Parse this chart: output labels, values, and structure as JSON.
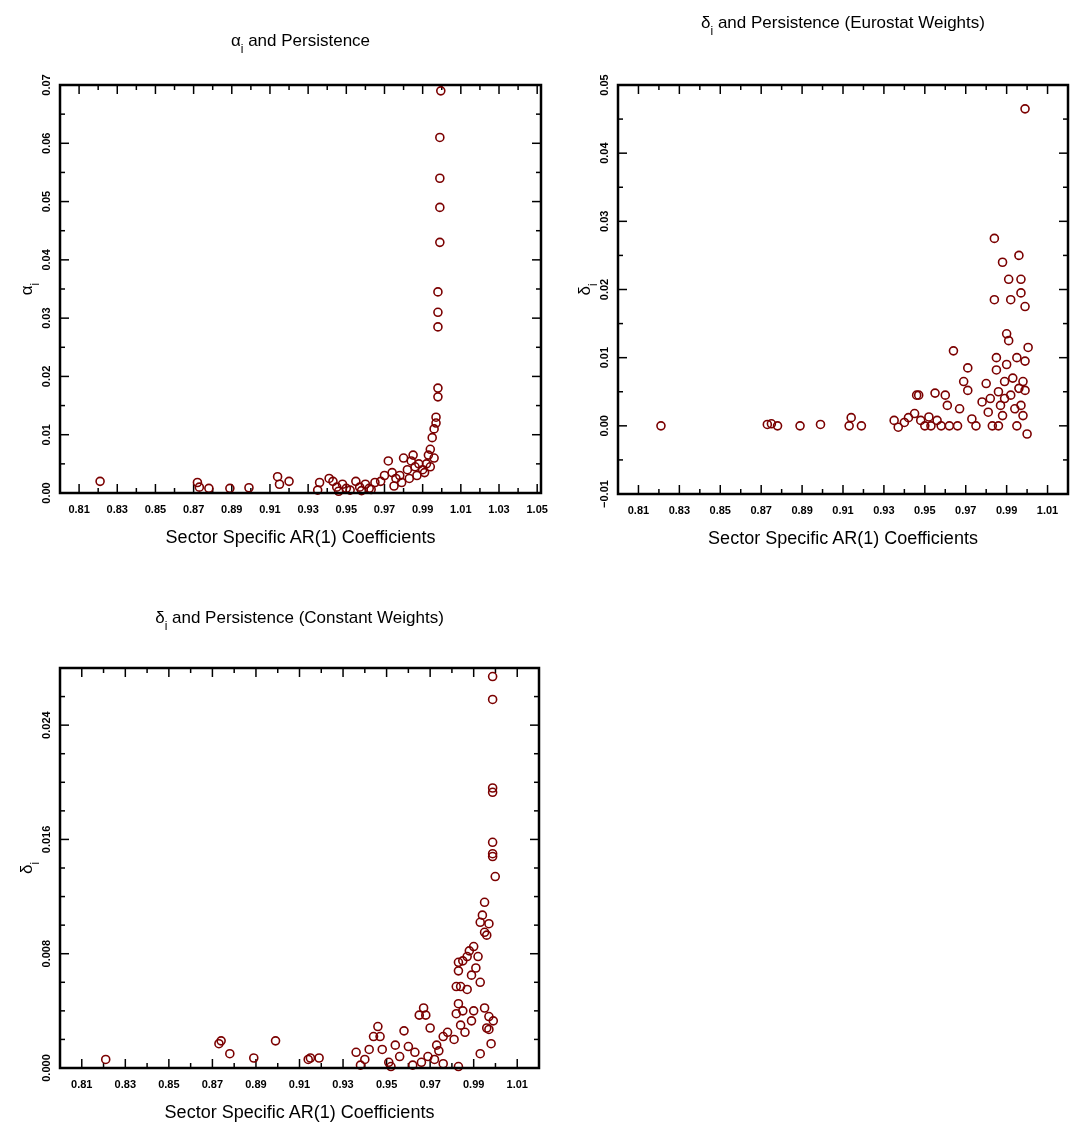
{
  "chart_data": [
    {
      "type": "scatter",
      "title": "α$_{i}$ and Persistence",
      "xlabel": "Sector Specific AR(1) Coefficients",
      "ylabel": "α$_{i}$",
      "color": "#7b0000",
      "marker": "circle",
      "grid": false,
      "xlim": [
        0.8,
        1.052
      ],
      "ylim": [
        0,
        0.07
      ],
      "xticks": [
        {
          "value": 0.81,
          "label": "0.81"
        },
        {
          "value": 0.82,
          "label": null
        },
        {
          "value": 0.83,
          "label": "0.83"
        },
        {
          "value": 0.84,
          "label": null
        },
        {
          "value": 0.85,
          "label": "0.85"
        },
        {
          "value": 0.86,
          "label": null
        },
        {
          "value": 0.87,
          "label": "0.87"
        },
        {
          "value": 0.88,
          "label": null
        },
        {
          "value": 0.89,
          "label": "0.89"
        },
        {
          "value": 0.9,
          "label": null
        },
        {
          "value": 0.91,
          "label": "0.91"
        },
        {
          "value": 0.92,
          "label": null
        },
        {
          "value": 0.93,
          "label": "0.93"
        },
        {
          "value": 0.94,
          "label": null
        },
        {
          "value": 0.95,
          "label": "0.95"
        },
        {
          "value": 0.96,
          "label": null
        },
        {
          "value": 0.97,
          "label": "0.97"
        },
        {
          "value": 0.98,
          "label": null
        },
        {
          "value": 0.99,
          "label": "0.99"
        },
        {
          "value": 1.0,
          "label": null
        },
        {
          "value": 1.01,
          "label": "1.01"
        },
        {
          "value": 1.02,
          "label": null
        },
        {
          "value": 1.03,
          "label": "1.03"
        },
        {
          "value": 1.04,
          "label": null
        },
        {
          "value": 1.05,
          "label": "1.05"
        }
      ],
      "yticks": [
        {
          "value": 0,
          "label": "0.00"
        },
        {
          "value": 0.005,
          "label": null
        },
        {
          "value": 0.01,
          "label": "0.01"
        },
        {
          "value": 0.015,
          "label": null
        },
        {
          "value": 0.02,
          "label": "0.02"
        },
        {
          "value": 0.025,
          "label": null
        },
        {
          "value": 0.03,
          "label": "0.03"
        },
        {
          "value": 0.035,
          "label": null
        },
        {
          "value": 0.04,
          "label": "0.04"
        },
        {
          "value": 0.045,
          "label": null
        },
        {
          "value": 0.05,
          "label": "0.05"
        },
        {
          "value": 0.055,
          "label": null
        },
        {
          "value": 0.06,
          "label": "0.06"
        },
        {
          "value": 0.065,
          "label": null
        },
        {
          "value": 0.07,
          "label": "0.07"
        }
      ],
      "x": [
        0.821,
        0.872,
        0.873,
        0.878,
        0.889,
        0.899,
        0.914,
        0.915,
        0.92,
        0.936,
        0.935,
        0.941,
        0.943,
        0.945,
        0.948,
        0.95,
        0.952,
        0.955,
        0.957,
        0.96,
        0.962,
        0.965,
        0.968,
        0.97,
        0.972,
        0.974,
        0.976,
        0.978,
        0.98,
        0.982,
        0.984,
        0.985,
        0.986,
        0.988,
        0.99,
        0.992,
        0.993,
        0.994,
        0.995,
        0.996,
        0.997,
        0.997,
        0.998,
        0.998,
        0.998,
        0.998,
        0.998,
        0.999,
        0.999,
        0.999,
        0.999,
        0.9995,
        0.975,
        0.979,
        0.983,
        0.987,
        0.991,
        0.994,
        0.996,
        0.963,
        0.958,
        0.946
      ],
      "values": [
        0.002,
        0.0018,
        0.001,
        0.0008,
        0.0008,
        0.0009,
        0.0028,
        0.0015,
        0.002,
        0.0018,
        0.0005,
        0.0025,
        0.002,
        0.001,
        0.0015,
        0.0008,
        0.0005,
        0.002,
        0.001,
        0.0015,
        0.0008,
        0.0018,
        0.002,
        0.003,
        0.0055,
        0.0035,
        0.0025,
        0.003,
        0.006,
        0.004,
        0.0055,
        0.0065,
        0.0045,
        0.005,
        0.004,
        0.005,
        0.0065,
        0.0075,
        0.0095,
        0.011,
        0.012,
        0.013,
        0.0165,
        0.018,
        0.0285,
        0.031,
        0.0345,
        0.043,
        0.049,
        0.054,
        0.061,
        0.069,
        0.0012,
        0.0018,
        0.0025,
        0.003,
        0.0035,
        0.0045,
        0.006,
        0.0006,
        0.0004,
        0.0003
      ]
    },
    {
      "type": "scatter",
      "title": "δ$_{i}$ and Persistence (Eurostat Weights)",
      "xlabel": "Sector Specific AR(1) Coefficients",
      "ylabel": "δ$_{i}$",
      "color": "#7b0000",
      "marker": "circle",
      "grid": false,
      "xlim": [
        0.8,
        1.02
      ],
      "ylim": [
        -0.01,
        0.05
      ],
      "xticks": [
        {
          "value": 0.81,
          "label": "0.81"
        },
        {
          "value": 0.82,
          "label": null
        },
        {
          "value": 0.83,
          "label": "0.83"
        },
        {
          "value": 0.84,
          "label": null
        },
        {
          "value": 0.85,
          "label": "0.85"
        },
        {
          "value": 0.86,
          "label": null
        },
        {
          "value": 0.87,
          "label": "0.87"
        },
        {
          "value": 0.88,
          "label": null
        },
        {
          "value": 0.89,
          "label": "0.89"
        },
        {
          "value": 0.9,
          "label": null
        },
        {
          "value": 0.91,
          "label": "0.91"
        },
        {
          "value": 0.92,
          "label": null
        },
        {
          "value": 0.93,
          "label": "0.93"
        },
        {
          "value": 0.94,
          "label": null
        },
        {
          "value": 0.95,
          "label": "0.95"
        },
        {
          "value": 0.96,
          "label": null
        },
        {
          "value": 0.97,
          "label": "0.97"
        },
        {
          "value": 0.98,
          "label": null
        },
        {
          "value": 0.99,
          "label": "0.99"
        },
        {
          "value": 1.0,
          "label": null
        },
        {
          "value": 1.01,
          "label": "1.01"
        }
      ],
      "yticks": [
        {
          "value": -0.01,
          "label": "−0.01"
        },
        {
          "value": -0.005,
          "label": null
        },
        {
          "value": 0,
          "label": "0.00"
        },
        {
          "value": 0.005,
          "label": null
        },
        {
          "value": 0.01,
          "label": "0.01"
        },
        {
          "value": 0.015,
          "label": null
        },
        {
          "value": 0.02,
          "label": "0.02"
        },
        {
          "value": 0.025,
          "label": null
        },
        {
          "value": 0.03,
          "label": "0.03"
        },
        {
          "value": 0.035,
          "label": null
        },
        {
          "value": 0.04,
          "label": "0.04"
        },
        {
          "value": 0.045,
          "label": null
        },
        {
          "value": 0.05,
          "label": "0.05"
        }
      ],
      "x": [
        0.821,
        0.873,
        0.875,
        0.878,
        0.889,
        0.899,
        0.913,
        0.914,
        0.919,
        0.935,
        0.937,
        0.94,
        0.942,
        0.945,
        0.946,
        0.947,
        0.948,
        0.95,
        0.952,
        0.953,
        0.955,
        0.956,
        0.958,
        0.96,
        0.961,
        0.962,
        0.964,
        0.966,
        0.967,
        0.969,
        0.971,
        0.971,
        0.973,
        0.975,
        0.978,
        0.98,
        0.981,
        0.983,
        0.984,
        0.984,
        0.985,
        0.985,
        0.986,
        0.987,
        0.988,
        0.988,
        0.989,
        0.99,
        0.99,
        0.991,
        0.991,
        0.992,
        0.992,
        0.993,
        0.994,
        0.995,
        0.995,
        0.996,
        0.996,
        0.997,
        0.997,
        0.998,
        0.998,
        0.999,
        0.999,
        0.999,
        0.999,
        1.0,
        1.0005,
        0.997,
        0.989,
        0.986,
        0.982
      ],
      "values": [
        0.0,
        0.0002,
        0.0003,
        0.0,
        0.0,
        0.0002,
        0.0,
        0.0012,
        0.0,
        0.0008,
        -0.0002,
        0.0005,
        0.0012,
        0.0018,
        0.0045,
        0.0045,
        0.0008,
        0.0,
        0.0013,
        0.0,
        0.0048,
        0.0008,
        0.0,
        0.0045,
        0.003,
        0.0,
        0.011,
        0.0,
        0.0025,
        0.0065,
        0.0085,
        0.0052,
        0.001,
        0.0,
        0.0035,
        0.0062,
        0.002,
        0.0,
        0.0185,
        0.0275,
        0.0082,
        0.01,
        0.005,
        0.003,
        0.0015,
        0.024,
        0.0065,
        0.009,
        0.0135,
        0.0125,
        0.0215,
        0.0045,
        0.0185,
        0.007,
        0.0025,
        0.01,
        0.0,
        0.0055,
        0.025,
        0.0195,
        0.0215,
        0.0065,
        0.0015,
        0.0175,
        0.0465,
        0.0095,
        0.0052,
        -0.0012,
        0.0115,
        0.003,
        0.004,
        0.0,
        0.004
      ]
    },
    {
      "type": "scatter",
      "title": "δ$_{i}$ and Persistence (Constant Weights)",
      "xlabel": "Sector Specific AR(1) Coefficients",
      "ylabel": "δ$_{i}$",
      "color": "#7b0000",
      "marker": "circle",
      "grid": false,
      "xlim": [
        0.8,
        1.02
      ],
      "ylim": [
        0,
        0.028
      ],
      "xticks": [
        {
          "value": 0.81,
          "label": "0.81"
        },
        {
          "value": 0.82,
          "label": null
        },
        {
          "value": 0.83,
          "label": "0.83"
        },
        {
          "value": 0.84,
          "label": null
        },
        {
          "value": 0.85,
          "label": "0.85"
        },
        {
          "value": 0.86,
          "label": null
        },
        {
          "value": 0.87,
          "label": "0.87"
        },
        {
          "value": 0.88,
          "label": null
        },
        {
          "value": 0.89,
          "label": "0.89"
        },
        {
          "value": 0.9,
          "label": null
        },
        {
          "value": 0.91,
          "label": "0.91"
        },
        {
          "value": 0.92,
          "label": null
        },
        {
          "value": 0.93,
          "label": "0.93"
        },
        {
          "value": 0.94,
          "label": null
        },
        {
          "value": 0.95,
          "label": "0.95"
        },
        {
          "value": 0.96,
          "label": null
        },
        {
          "value": 0.97,
          "label": "0.97"
        },
        {
          "value": 0.98,
          "label": null
        },
        {
          "value": 0.99,
          "label": "0.99"
        },
        {
          "value": 1.0,
          "label": null
        },
        {
          "value": 1.01,
          "label": "1.01"
        }
      ],
      "yticks": [
        {
          "value": 0,
          "label": "0.000"
        },
        {
          "value": 0.002,
          "label": null
        },
        {
          "value": 0.004,
          "label": null
        },
        {
          "value": 0.006,
          "label": null
        },
        {
          "value": 0.008,
          "label": "0.008"
        },
        {
          "value": 0.01,
          "label": null
        },
        {
          "value": 0.012,
          "label": null
        },
        {
          "value": 0.014,
          "label": null
        },
        {
          "value": 0.016,
          "label": "0.016"
        },
        {
          "value": 0.018,
          "label": null
        },
        {
          "value": 0.02,
          "label": null
        },
        {
          "value": 0.022,
          "label": null
        },
        {
          "value": 0.024,
          "label": "0.024"
        },
        {
          "value": 0.026,
          "label": null
        }
      ],
      "x": [
        0.821,
        0.873,
        0.874,
        0.878,
        0.889,
        0.899,
        0.914,
        0.915,
        0.919,
        0.9987,
        0.9987,
        0.9987,
        0.9987,
        0.9987,
        0.9987,
        0.9987,
        0.9999,
        0.995,
        0.994,
        0.993,
        0.997,
        0.995,
        0.996,
        0.99,
        0.988,
        0.987,
        0.992,
        0.985,
        0.991,
        0.983,
        0.983,
        0.989,
        0.982,
        0.984,
        0.993,
        0.987,
        0.985,
        0.983,
        0.982,
        0.99,
        0.995,
        0.997,
        0.996,
        0.989,
        0.986,
        0.984,
        0.981,
        0.978,
        0.976,
        0.973,
        0.97,
        0.968,
        0.967,
        0.965,
        0.974,
        0.972,
        0.969,
        0.966,
        0.963,
        0.96,
        0.958,
        0.956,
        0.954,
        0.951,
        0.948,
        0.946,
        0.947,
        0.944,
        0.942,
        0.94,
        0.936,
        0.938,
        0.952,
        0.962,
        0.976,
        0.983,
        0.993,
        0.998,
        0.997,
        0.999
      ],
      "values": [
        0.0006,
        0.0017,
        0.0019,
        0.001,
        0.0007,
        0.0019,
        0.0006,
        0.0007,
        0.0007,
        0.0274,
        0.0258,
        0.0196,
        0.0193,
        0.0158,
        0.0148,
        0.015,
        0.0134,
        0.0116,
        0.0107,
        0.0102,
        0.0101,
        0.0095,
        0.0093,
        0.0085,
        0.0082,
        0.0078,
        0.0078,
        0.0075,
        0.007,
        0.0074,
        0.0068,
        0.0065,
        0.0057,
        0.0057,
        0.006,
        0.0055,
        0.004,
        0.0045,
        0.0038,
        0.004,
        0.0042,
        0.0036,
        0.0028,
        0.0033,
        0.0025,
        0.003,
        0.002,
        0.0025,
        0.0022,
        0.0016,
        0.0028,
        0.0037,
        0.0042,
        0.0037,
        0.0012,
        0.0006,
        0.0008,
        0.0004,
        0.0011,
        0.0015,
        0.0026,
        0.0008,
        0.0016,
        0.0004,
        0.0013,
        0.0029,
        0.0022,
        0.0022,
        0.0013,
        0.0006,
        0.0011,
        0.0002,
        0.0001,
        0.0002,
        0.0003,
        0.0001,
        0.001,
        0.0017,
        0.0027,
        0.0033
      ]
    }
  ]
}
